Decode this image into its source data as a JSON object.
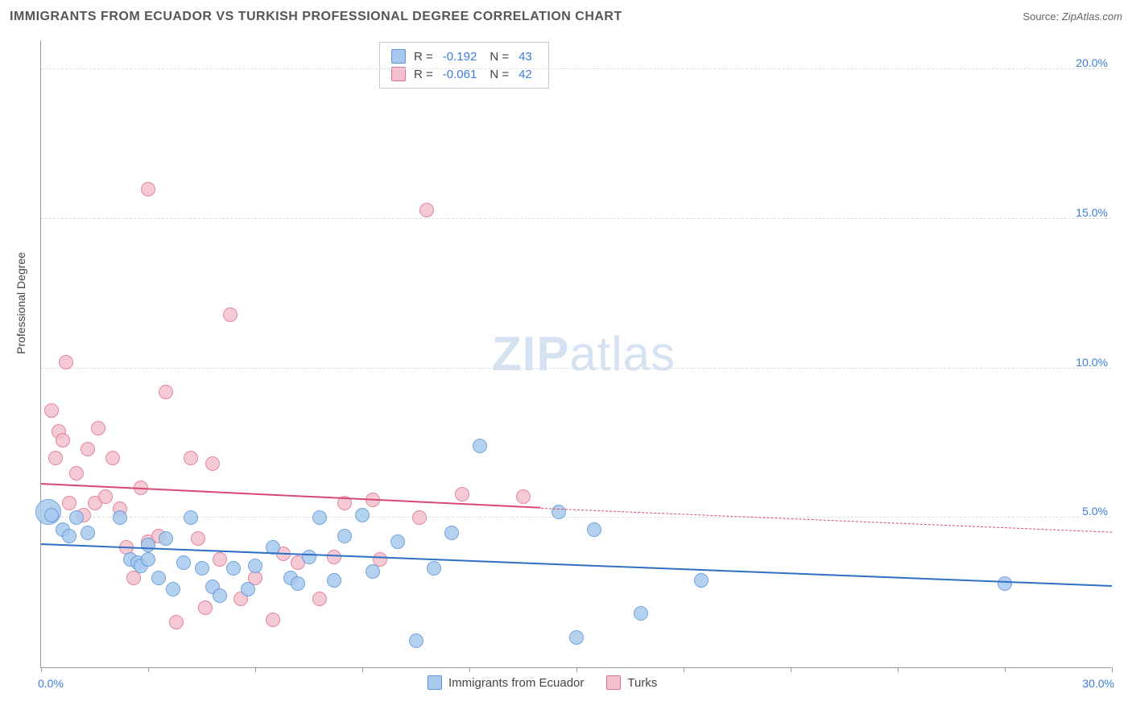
{
  "title": "IMMIGRANTS FROM ECUADOR VS TURKISH PROFESSIONAL DEGREE CORRELATION CHART",
  "source_label": "Source:",
  "source_value": "ZipAtlas.com",
  "ylabel": "Professional Degree",
  "watermark_bold": "ZIP",
  "watermark_light": "atlas",
  "chart": {
    "type": "scatter",
    "xlim": [
      0,
      30
    ],
    "ylim": [
      0,
      21
    ],
    "x_min_label": "0.0%",
    "x_max_label": "30.0%",
    "y_gridlines": [
      5,
      10,
      15,
      20
    ],
    "y_gridline_labels": [
      "5.0%",
      "10.0%",
      "15.0%",
      "20.0%"
    ],
    "y_tick_color": "#3b7dd8",
    "x_tick_color": "#3b7dd8",
    "x_ticks": [
      0,
      3,
      6,
      9,
      12,
      15,
      18,
      21,
      24,
      27,
      30
    ],
    "background_color": "#ffffff",
    "grid_color": "#dddddd",
    "axis_color": "#999999",
    "point_radius": 9,
    "point_border_width": 1
  },
  "series": {
    "ecuador": {
      "label": "Immigrants from Ecuador",
      "fill_color": "#a8c9ee",
      "border_color": "#5a96d8",
      "R_label": "R =",
      "R_value": "-0.192",
      "N_label": "N =",
      "N_value": "43",
      "trend": {
        "x1": 0,
        "y1": 4.1,
        "x2": 30,
        "y2": 2.7,
        "color": "#2f6fc4",
        "width": 2,
        "dash_after_x": 30
      },
      "points": [
        {
          "x": 0.2,
          "y": 5.2,
          "r": 16
        },
        {
          "x": 0.3,
          "y": 5.1,
          "r": 9
        },
        {
          "x": 0.6,
          "y": 4.6,
          "r": 9
        },
        {
          "x": 0.8,
          "y": 4.4,
          "r": 9
        },
        {
          "x": 1.0,
          "y": 5.0,
          "r": 9
        },
        {
          "x": 1.3,
          "y": 4.5,
          "r": 9
        },
        {
          "x": 2.2,
          "y": 5.0,
          "r": 9
        },
        {
          "x": 2.5,
          "y": 3.6,
          "r": 9
        },
        {
          "x": 2.7,
          "y": 3.5,
          "r": 9
        },
        {
          "x": 2.8,
          "y": 3.4,
          "r": 9
        },
        {
          "x": 3.0,
          "y": 3.6,
          "r": 9
        },
        {
          "x": 3.0,
          "y": 4.1,
          "r": 9
        },
        {
          "x": 3.3,
          "y": 3.0,
          "r": 9
        },
        {
          "x": 3.5,
          "y": 4.3,
          "r": 9
        },
        {
          "x": 3.7,
          "y": 2.6,
          "r": 9
        },
        {
          "x": 4.0,
          "y": 3.5,
          "r": 9
        },
        {
          "x": 4.2,
          "y": 5.0,
          "r": 9
        },
        {
          "x": 4.5,
          "y": 3.3,
          "r": 9
        },
        {
          "x": 4.8,
          "y": 2.7,
          "r": 9
        },
        {
          "x": 5.0,
          "y": 2.4,
          "r": 9
        },
        {
          "x": 5.4,
          "y": 3.3,
          "r": 9
        },
        {
          "x": 5.8,
          "y": 2.6,
          "r": 9
        },
        {
          "x": 6.0,
          "y": 3.4,
          "r": 9
        },
        {
          "x": 6.5,
          "y": 4.0,
          "r": 9
        },
        {
          "x": 7.0,
          "y": 3.0,
          "r": 9
        },
        {
          "x": 7.2,
          "y": 2.8,
          "r": 9
        },
        {
          "x": 7.5,
          "y": 3.7,
          "r": 9
        },
        {
          "x": 7.8,
          "y": 5.0,
          "r": 9
        },
        {
          "x": 8.2,
          "y": 2.9,
          "r": 9
        },
        {
          "x": 8.5,
          "y": 4.4,
          "r": 9
        },
        {
          "x": 9.0,
          "y": 5.1,
          "r": 9
        },
        {
          "x": 9.3,
          "y": 3.2,
          "r": 9
        },
        {
          "x": 10.0,
          "y": 4.2,
          "r": 9
        },
        {
          "x": 10.5,
          "y": 0.9,
          "r": 9
        },
        {
          "x": 11.0,
          "y": 3.3,
          "r": 9
        },
        {
          "x": 11.5,
          "y": 4.5,
          "r": 9
        },
        {
          "x": 12.3,
          "y": 7.4,
          "r": 9
        },
        {
          "x": 14.5,
          "y": 5.2,
          "r": 9
        },
        {
          "x": 15.0,
          "y": 1.0,
          "r": 9
        },
        {
          "x": 15.5,
          "y": 4.6,
          "r": 9
        },
        {
          "x": 16.8,
          "y": 1.8,
          "r": 9
        },
        {
          "x": 18.5,
          "y": 2.9,
          "r": 9
        },
        {
          "x": 27.0,
          "y": 2.8,
          "r": 9
        }
      ]
    },
    "turks": {
      "label": "Turks",
      "fill_color": "#f3c1cd",
      "border_color": "#e0708f",
      "R_label": "R =",
      "R_value": "-0.061",
      "N_label": "N =",
      "N_value": "42",
      "trend": {
        "x1": 0,
        "y1": 6.1,
        "x2": 14,
        "y2": 5.3,
        "color": "#d84a73",
        "width": 2,
        "dash_after_x": 14,
        "x_end": 30,
        "y_end": 4.5
      },
      "points": [
        {
          "x": 0.3,
          "y": 8.6,
          "r": 9
        },
        {
          "x": 0.4,
          "y": 7.0,
          "r": 9
        },
        {
          "x": 0.5,
          "y": 7.9,
          "r": 9
        },
        {
          "x": 0.6,
          "y": 7.6,
          "r": 9
        },
        {
          "x": 0.7,
          "y": 10.2,
          "r": 9
        },
        {
          "x": 0.8,
          "y": 5.5,
          "r": 9
        },
        {
          "x": 1.0,
          "y": 6.5,
          "r": 9
        },
        {
          "x": 1.2,
          "y": 5.1,
          "r": 9
        },
        {
          "x": 1.3,
          "y": 7.3,
          "r": 9
        },
        {
          "x": 1.5,
          "y": 5.5,
          "r": 9
        },
        {
          "x": 1.6,
          "y": 8.0,
          "r": 9
        },
        {
          "x": 1.8,
          "y": 5.7,
          "r": 9
        },
        {
          "x": 2.0,
          "y": 7.0,
          "r": 9
        },
        {
          "x": 2.2,
          "y": 5.3,
          "r": 9
        },
        {
          "x": 2.4,
          "y": 4.0,
          "r": 9
        },
        {
          "x": 2.6,
          "y": 3.0,
          "r": 9
        },
        {
          "x": 2.8,
          "y": 6.0,
          "r": 9
        },
        {
          "x": 3.0,
          "y": 4.2,
          "r": 9
        },
        {
          "x": 3.0,
          "y": 16.0,
          "r": 9
        },
        {
          "x": 3.3,
          "y": 4.4,
          "r": 9
        },
        {
          "x": 3.5,
          "y": 9.2,
          "r": 9
        },
        {
          "x": 3.8,
          "y": 1.5,
          "r": 9
        },
        {
          "x": 4.2,
          "y": 7.0,
          "r": 9
        },
        {
          "x": 4.4,
          "y": 4.3,
          "r": 9
        },
        {
          "x": 4.6,
          "y": 2.0,
          "r": 9
        },
        {
          "x": 4.8,
          "y": 6.8,
          "r": 9
        },
        {
          "x": 5.0,
          "y": 3.6,
          "r": 9
        },
        {
          "x": 5.3,
          "y": 11.8,
          "r": 9
        },
        {
          "x": 5.6,
          "y": 2.3,
          "r": 9
        },
        {
          "x": 6.0,
          "y": 3.0,
          "r": 9
        },
        {
          "x": 6.5,
          "y": 1.6,
          "r": 9
        },
        {
          "x": 6.8,
          "y": 3.8,
          "r": 9
        },
        {
          "x": 7.2,
          "y": 3.5,
          "r": 9
        },
        {
          "x": 7.8,
          "y": 2.3,
          "r": 9
        },
        {
          "x": 8.2,
          "y": 3.7,
          "r": 9
        },
        {
          "x": 8.5,
          "y": 5.5,
          "r": 9
        },
        {
          "x": 9.3,
          "y": 5.6,
          "r": 9
        },
        {
          "x": 9.5,
          "y": 3.6,
          "r": 9
        },
        {
          "x": 10.6,
          "y": 5.0,
          "r": 9
        },
        {
          "x": 10.8,
          "y": 15.3,
          "r": 9
        },
        {
          "x": 11.8,
          "y": 5.8,
          "r": 9
        },
        {
          "x": 13.5,
          "y": 5.7,
          "r": 9
        }
      ]
    }
  }
}
